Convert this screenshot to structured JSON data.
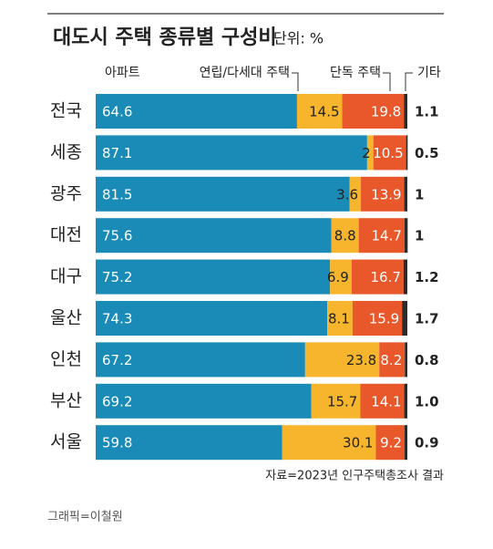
{
  "chart_data": {
    "type": "stacked-bar-horizontal",
    "title": "대도시 주택 종류별 구성비",
    "subtitle": "단위: %",
    "source": "자료=2023년 인구주택총조사 결과",
    "credit": "그래픽=이철원",
    "categories": [
      "전국",
      "세종",
      "광주",
      "대전",
      "대구",
      "울산",
      "인천",
      "부산",
      "서울"
    ],
    "xlim": [
      0,
      100
    ],
    "series": [
      {
        "name": "아파트",
        "color": "#1a8ab7",
        "values": [
          64.6,
          87.1,
          81.5,
          75.6,
          75.2,
          74.3,
          67.2,
          69.2,
          59.8
        ]
      },
      {
        "name": "연립/다세대 주택",
        "color": "#f6b52c",
        "values": [
          14.5,
          2,
          3.6,
          8.8,
          6.9,
          8.1,
          23.8,
          15.7,
          30.1
        ]
      },
      {
        "name": "단독 주택",
        "color": "#e8582b",
        "values": [
          19.8,
          10.5,
          13.9,
          14.7,
          16.7,
          15.9,
          8.2,
          14.1,
          9.2
        ]
      },
      {
        "name": "기타",
        "color": "#2b2b2b",
        "values": [
          1.1,
          0.5,
          1,
          1,
          1.2,
          1.7,
          0.8,
          1.0,
          0.9
        ],
        "value_labels": [
          "1.1",
          "0.5",
          "1",
          "1",
          "1.2",
          "1.7",
          "0.8",
          "1.0",
          "0.9"
        ]
      }
    ]
  }
}
